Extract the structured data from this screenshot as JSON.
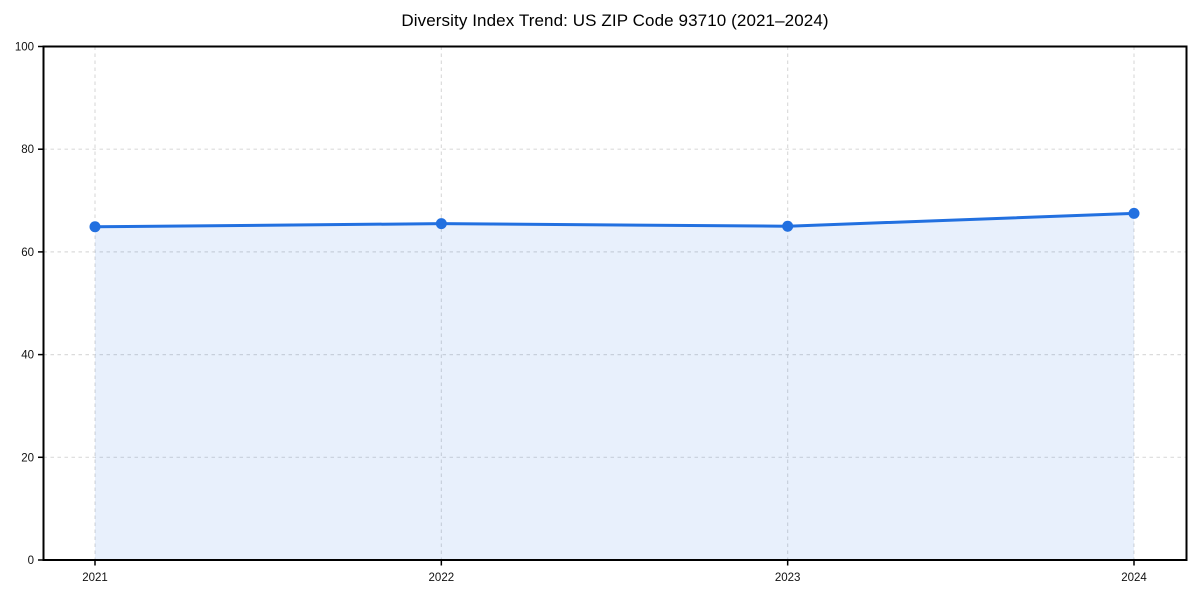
{
  "chart_data": {
    "type": "line",
    "title": "Diversity Index Trend: US ZIP Code 93710 (2021–2024)",
    "series_name": "Diversity Index",
    "categories": [
      "2021",
      "2022",
      "2023",
      "2024"
    ],
    "values": [
      64.9,
      65.5,
      65.0,
      67.5
    ],
    "xlabel": "",
    "ylabel": "",
    "ylim": [
      0,
      100
    ],
    "yticks": [
      0,
      20,
      40,
      60,
      80,
      100
    ],
    "grid": "dashed",
    "legend_position": "none",
    "marker": "circle",
    "area_fill": true,
    "colors": {
      "line": "#2270e0",
      "fill": "#2270e0",
      "fill_opacity": 0.1,
      "grid": "#dbdbdb",
      "axis": "#000000",
      "tick_text": "#111111",
      "background": "#ffffff"
    }
  }
}
